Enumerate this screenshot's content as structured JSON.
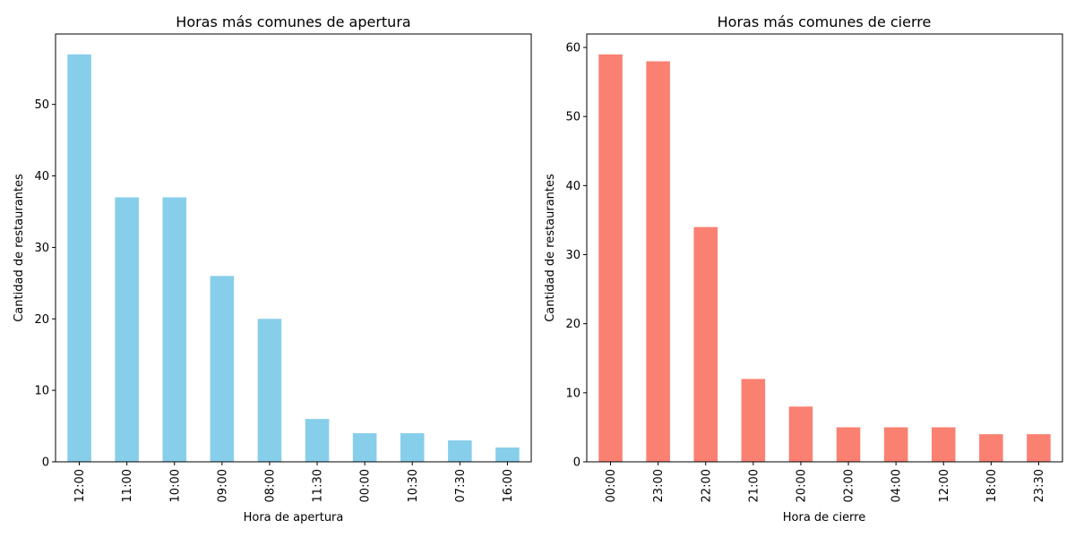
{
  "chart_data": [
    {
      "type": "bar",
      "title": "Horas más comunes de apertura",
      "xlabel": "Hora de apertura",
      "ylabel": "Cantidad de restaurantes",
      "categories": [
        "12:00",
        "11:00",
        "10:00",
        "09:00",
        "08:00",
        "11:30",
        "00:00",
        "10:30",
        "07:30",
        "16:00"
      ],
      "values": [
        57,
        37,
        37,
        26,
        20,
        6,
        4,
        4,
        3,
        2
      ],
      "ylim": [
        0,
        59.85
      ],
      "yticks": [
        0,
        10,
        20,
        30,
        40,
        50
      ],
      "color": "#87CEEB",
      "grid": false
    },
    {
      "type": "bar",
      "title": "Horas más comunes de cierre",
      "xlabel": "Hora de cierre",
      "ylabel": "Cantidad de restaurantes",
      "categories": [
        "00:00",
        "23:00",
        "22:00",
        "21:00",
        "20:00",
        "02:00",
        "04:00",
        "12:00",
        "18:00",
        "23:30"
      ],
      "values": [
        59,
        58,
        34,
        12,
        8,
        5,
        5,
        5,
        4,
        4
      ],
      "ylim": [
        0,
        61.95
      ],
      "yticks": [
        0,
        10,
        20,
        30,
        40,
        50,
        60
      ],
      "color": "#FA8072",
      "grid": false
    }
  ]
}
